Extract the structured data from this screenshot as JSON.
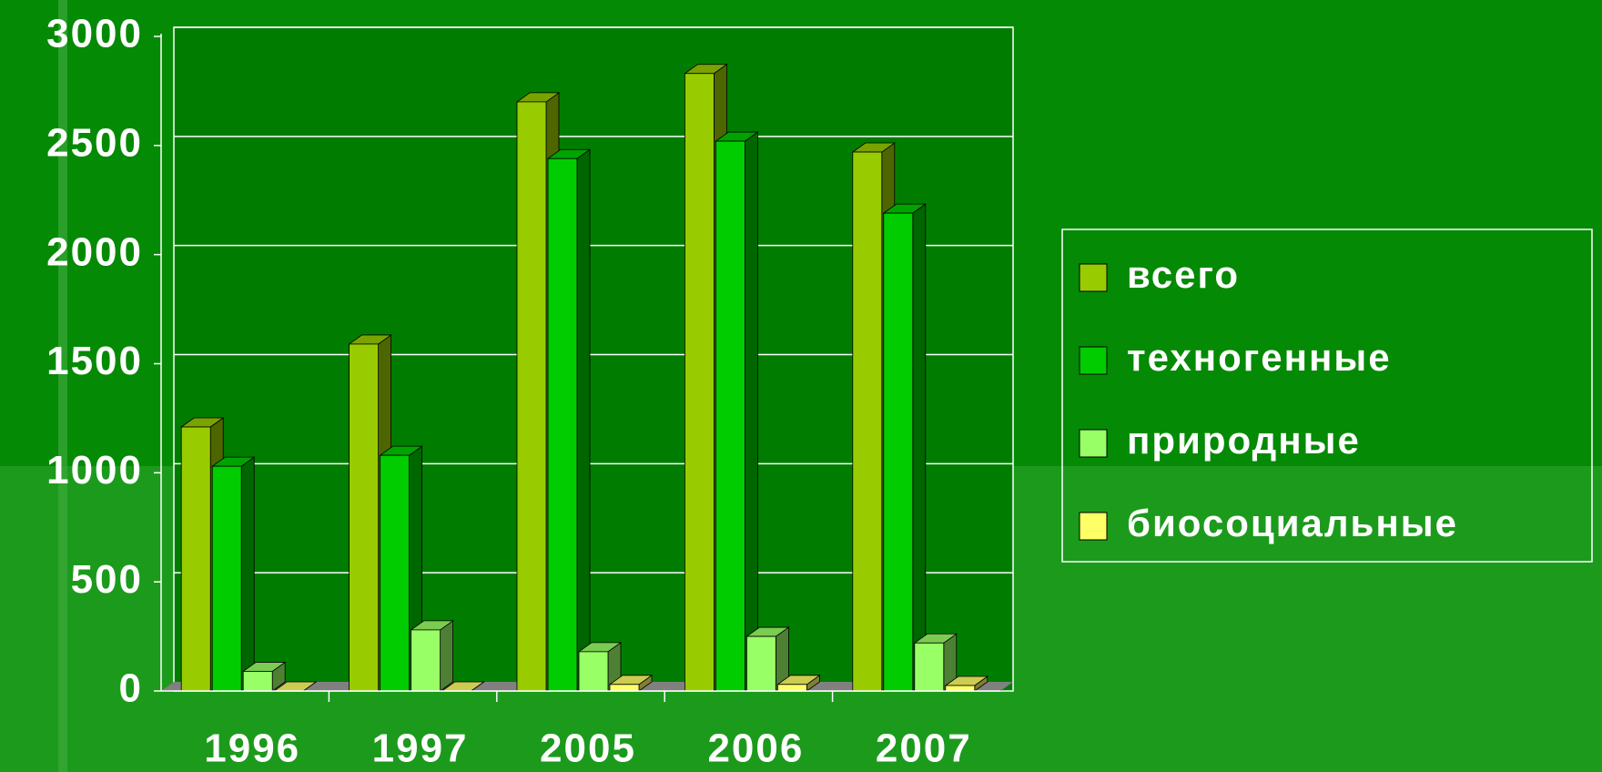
{
  "chart_data": {
    "type": "bar",
    "categories": [
      "1996",
      "1997",
      "2005",
      "2006",
      "2007"
    ],
    "series": [
      {
        "name": "всего",
        "color": "#99cc00",
        "values": [
          1210,
          1590,
          2700,
          2830,
          2470
        ]
      },
      {
        "name": "техногенные",
        "color": "#00cc00",
        "values": [
          1030,
          1080,
          2440,
          2520,
          2190
        ]
      },
      {
        "name": "природные",
        "color": "#99ff66",
        "values": [
          90,
          280,
          180,
          250,
          220
        ]
      },
      {
        "name": "биосоциальные",
        "color": "#ffff66",
        "values": [
          0,
          0,
          30,
          30,
          25
        ]
      }
    ],
    "ylim": [
      0,
      3000
    ],
    "yticks": [
      0,
      500,
      1000,
      1500,
      2000,
      2500,
      3000
    ],
    "grid": true,
    "legend": "right"
  }
}
